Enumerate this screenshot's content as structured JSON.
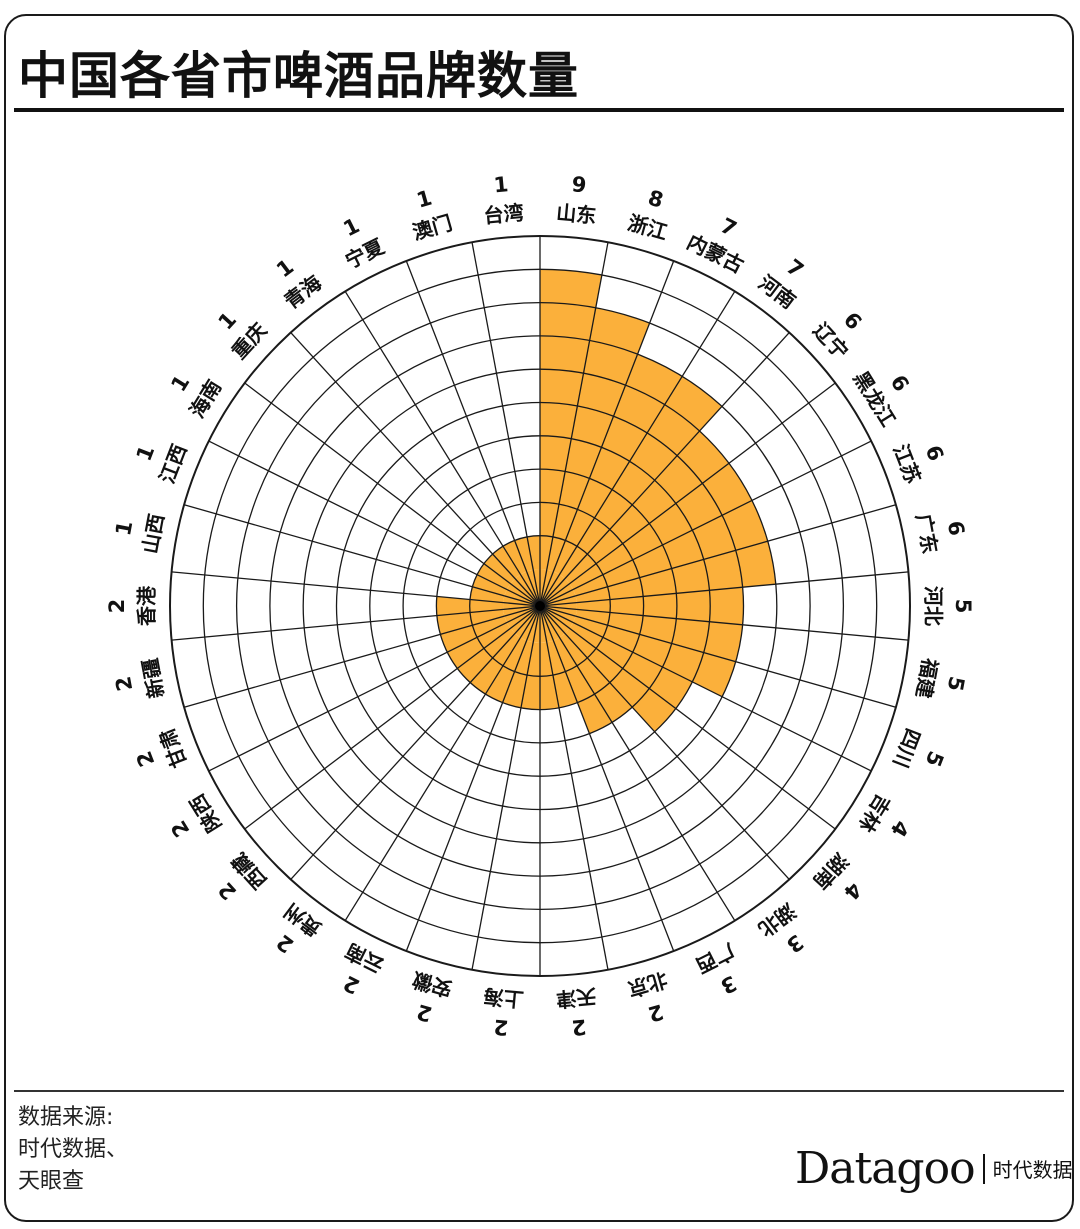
{
  "page": {
    "title": "中国各省市啤酒品牌数量",
    "source_lines": [
      "数据来源:",
      "时代数据、",
      "天眼查"
    ],
    "logo_word": "Datagoo",
    "logo_cn": "时代数据"
  },
  "colors": {
    "bar": "#fbb03b",
    "grid": "#1a1a1a"
  },
  "chart_data": {
    "type": "bar",
    "layout": "polar",
    "title": "中国各省市啤酒品牌数量",
    "rmax": 10,
    "grid": true,
    "categories": [
      "山东",
      "浙江",
      "内蒙古",
      "河南",
      "辽宁",
      "黑龙江",
      "江苏",
      "广东",
      "河北",
      "福建",
      "四川",
      "吉林",
      "湖南",
      "湖北",
      "广西",
      "北京",
      "天津",
      "上海",
      "安徽",
      "云南",
      "贵州",
      "西藏",
      "陕西",
      "甘肃",
      "新疆",
      "香港",
      "山西",
      "江西",
      "海南",
      "重庆",
      "青海",
      "宁夏",
      "澳门",
      "台湾"
    ],
    "values": [
      9,
      8,
      7,
      7,
      6,
      6,
      6,
      6,
      5,
      5,
      5,
      4,
      4,
      3,
      3,
      2,
      2,
      2,
      2,
      2,
      2,
      2,
      2,
      2,
      2,
      2,
      1,
      1,
      1,
      1,
      1,
      1,
      1,
      1
    ]
  }
}
